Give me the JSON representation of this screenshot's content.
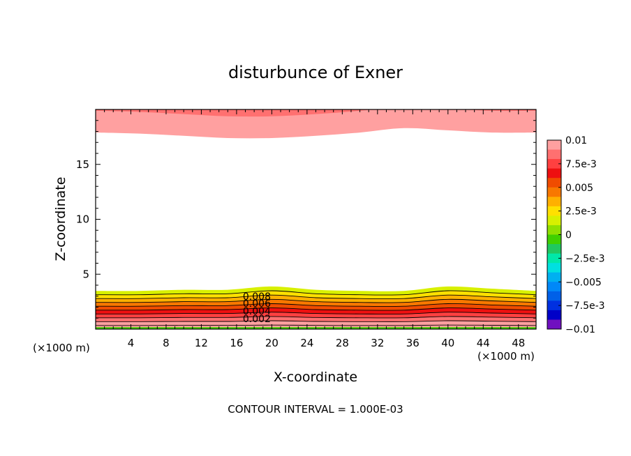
{
  "chart_data": {
    "type": "heatmap",
    "title": "disturbunce of Exner",
    "xlabel": "X-coordinate",
    "ylabel": "Z-coordinate",
    "x_unit": "(×1000 m)",
    "y_unit": "(×1000 m)",
    "xlim": [
      0,
      50
    ],
    "ylim": [
      0,
      20
    ],
    "x_ticks": [
      "4",
      "8",
      "12",
      "16",
      "20",
      "24",
      "28",
      "32",
      "36",
      "40",
      "44",
      "48"
    ],
    "y_ticks": [
      "5",
      "10",
      "15"
    ],
    "footer": "CONTOUR INTERVAL = 1.000E-03",
    "colorbar": {
      "tick_labels": [
        "0.01",
        "7.5e-3",
        "0.005",
        "2.5e-3",
        "0",
        "−2.5e-3",
        "−0.005",
        "−7.5e-3",
        "−0.01"
      ],
      "levels": [
        0.01,
        0.009,
        0.008,
        0.007,
        0.006,
        0.005,
        0.004,
        0.003,
        0.002,
        0.001,
        0.0,
        -0.001,
        -0.002,
        -0.003,
        -0.004,
        -0.005,
        -0.006,
        -0.007,
        -0.008,
        -0.009,
        -0.01
      ],
      "colors": [
        "#FFA0A0",
        "#FF7070",
        "#FF4040",
        "#EE1010",
        "#F04C00",
        "#F87800",
        "#FFB000",
        "#FFE000",
        "#D8F000",
        "#90E000",
        "#40D000",
        "#20C860",
        "#00E8A8",
        "#00E0E0",
        "#00B0F0",
        "#0088F8",
        "#0060E8",
        "#0030E0",
        "#0000C8",
        "#7010C0"
      ]
    },
    "contour_labels": [
      "0.008",
      "0.006",
      "0.004",
      "0.002"
    ],
    "upper_band": {
      "levels_from_top": [
        0.01,
        0.009,
        0.008
      ],
      "boundary_top_x": [
        0,
        5,
        10,
        15,
        20,
        25,
        30,
        35,
        40,
        45,
        50
      ],
      "boundary_z": [
        17.9,
        17.8,
        17.6,
        17.4,
        17.4,
        17.6,
        17.9,
        18.3,
        18.1,
        17.9,
        17.9
      ]
    },
    "lower_band": {
      "x": [
        0,
        5,
        10,
        15,
        20,
        25,
        30,
        35,
        40,
        45,
        50
      ],
      "z_at_level_0.001": [
        3.5,
        3.5,
        3.6,
        3.6,
        3.9,
        3.6,
        3.5,
        3.5,
        3.9,
        3.7,
        3.5
      ],
      "levels_from_top": [
        0.001,
        0.002,
        0.003,
        0.004,
        0.005,
        0.006,
        0.007,
        0.008,
        0.009,
        0.01
      ]
    }
  }
}
